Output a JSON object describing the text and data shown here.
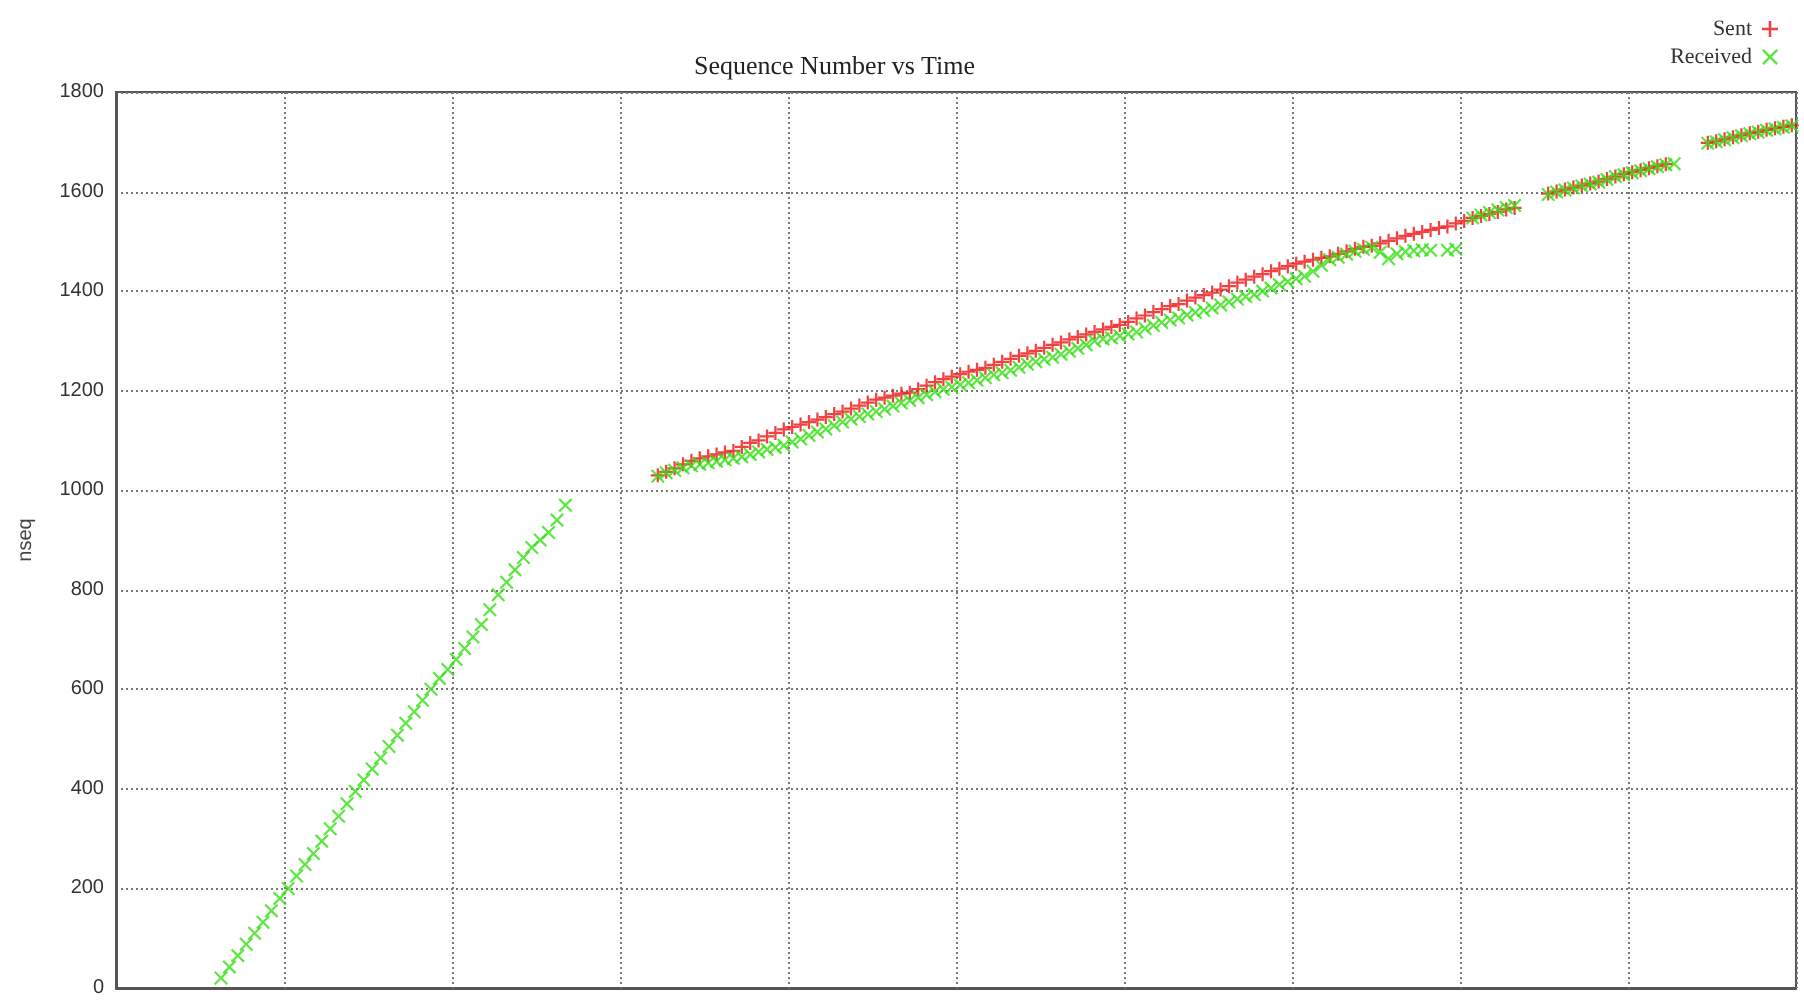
{
  "chart_data": {
    "type": "scatter",
    "title": "Sequence Number vs Time",
    "ylabel": "nseq",
    "categories": [
      null,
      null,
      null,
      null,
      null,
      null,
      null,
      null,
      null,
      null,
      null,
      null,
      null,
      null,
      null,
      null,
      null,
      null,
      null,
      null,
      null,
      null,
      null,
      null,
      null,
      null,
      null,
      null,
      null,
      null,
      null,
      null,
      null,
      null,
      null,
      null,
      null,
      null,
      null,
      null,
      null,
      null,
      null,
      null,
      null,
      null,
      null,
      null,
      null,
      null,
      null,
      null,
      null,
      null,
      null,
      null,
      null,
      null,
      null,
      null,
      null,
      null,
      null,
      null,
      null,
      null,
      null,
      null,
      null,
      null,
      null,
      null,
      null,
      null,
      null,
      null,
      null,
      null,
      null,
      null,
      null,
      null,
      null,
      null,
      null,
      null,
      null,
      null,
      null,
      null,
      null,
      null,
      null,
      null,
      null,
      null,
      null,
      null,
      null,
      null,
      null,
      null,
      null,
      null,
      null,
      null,
      null,
      null,
      null,
      null,
      null,
      null,
      null,
      null,
      null,
      null,
      null,
      null,
      null,
      null,
      null,
      null,
      null,
      null,
      null,
      null,
      null,
      null,
      null,
      null,
      null,
      null,
      null,
      null,
      null,
      null,
      null,
      null,
      null,
      null,
      null,
      null,
      null,
      null,
      null,
      null,
      null,
      null,
      null,
      null,
      null,
      null,
      null,
      null,
      null,
      null,
      null,
      null,
      null,
      null,
      null,
      null,
      null,
      null,
      null,
      null,
      null,
      null,
      null,
      null,
      null,
      null,
      null,
      null,
      null,
      null,
      null,
      null,
      null,
      null,
      null,
      null,
      null,
      null,
      null,
      null,
      null,
      null,
      null,
      null,
      null,
      null,
      null,
      null,
      null,
      null,
      null,
      null,
      null,
      null
    ],
    "series": [
      {
        "name": "Sent",
        "color": "#ee1111",
        "values": [
          null,
          null,
          null,
          null,
          null,
          null,
          null,
          null,
          null,
          null,
          null,
          null,
          null,
          null,
          null,
          null,
          null,
          null,
          null,
          null,
          null,
          null,
          null,
          null,
          null,
          null,
          null,
          null,
          null,
          null,
          null,
          null,
          null,
          null,
          null,
          null,
          null,
          null,
          null,
          null,
          null,
          null,
          null,
          null,
          null,
          null,
          null,
          null,
          null,
          null,
          null,
          null,
          null,
          null,
          null,
          null,
          null,
          null,
          null,
          null,
          null,
          null,
          null,
          null,
          1030,
          1037,
          1044,
          1052,
          1059,
          1064,
          1068,
          1072,
          1076,
          1079,
          1087,
          1095,
          1100,
          1108,
          1115,
          1122,
          1127,
          1132,
          1137,
          1142,
          1147,
          1153,
          1158,
          1164,
          1170,
          1176,
          1182,
          1186,
          1190,
          1194,
          1196,
          1203,
          1210,
          1217,
          1223,
          1228,
          1233,
          1238,
          1242,
          1246,
          1252,
          1258,
          1264,
          1270,
          1275,
          1280,
          1286,
          1292,
          1297,
          1303,
          1308,
          1313,
          1318,
          1323,
          1328,
          1332,
          1338,
          1345,
          1351,
          1358,
          1364,
          1370,
          1374,
          1381,
          1387,
          1392,
          1397,
          1403,
          1410,
          1417,
          1423,
          1429,
          1434,
          1440,
          1445,
          1450,
          1455,
          1459,
          1463,
          1467,
          1470,
          1475,
          1480,
          1485,
          1489,
          1491,
          1496,
          1501,
          1506,
          1511,
          1515,
          1519,
          1523,
          1527,
          1530,
          1536,
          1541,
          1547,
          1551,
          1555,
          1559,
          1564,
          1567,
          null,
          null,
          null,
          1596,
          1600,
          1604,
          1608,
          1612,
          1616,
          1620,
          1625,
          1630,
          1635,
          1639,
          1643,
          1647,
          1651,
          1655,
          null,
          null,
          null,
          null,
          1698,
          1701,
          1705,
          1709,
          1713,
          1717,
          1720,
          1724,
          1727,
          1730,
          1733
        ]
      },
      {
        "name": "Received",
        "color": "#33e010",
        "values": [
          null,
          null,
          null,
          null,
          null,
          null,
          null,
          null,
          null,
          null,
          null,
          null,
          20,
          42,
          65,
          88,
          110,
          132,
          155,
          180,
          200,
          225,
          248,
          270,
          295,
          320,
          345,
          370,
          395,
          418,
          440,
          462,
          485,
          508,
          532,
          555,
          578,
          600,
          622,
          640,
          660,
          682,
          705,
          730,
          760,
          790,
          815,
          840,
          865,
          885,
          900,
          915,
          940,
          970,
          null,
          null,
          null,
          null,
          null,
          null,
          null,
          null,
          null,
          null,
          1028,
          1035,
          1040,
          1045,
          1049,
          1052,
          1055,
          1058,
          1061,
          1064,
          1067,
          1072,
          1077,
          1082,
          1086,
          1090,
          1097,
          1103,
          1110,
          1117,
          1123,
          1130,
          1137,
          1143,
          1148,
          1153,
          1158,
          1163,
          1169,
          1175,
          1180,
          1186,
          1192,
          1198,
          1203,
          1207,
          1212,
          1216,
          1221,
          1226,
          1232,
          1236,
          1241,
          1247,
          1253,
          1258,
          1263,
          1267,
          1273,
          1279,
          1285,
          1292,
          1300,
          1304,
          1306,
          1310,
          1314,
          1318,
          1325,
          1331,
          1337,
          1342,
          1346,
          1352,
          1357,
          1361,
          1366,
          1372,
          1378,
          1384,
          1389,
          1393,
          1400,
          1406,
          1413,
          1419,
          1425,
          1430,
          1440,
          1452,
          1463,
          1468,
          1474,
          1480,
          1484,
          1488,
          1478,
          1465,
          1475,
          1479,
          1481,
          1483,
          1482,
          null,
          1482,
          1484,
          null,
          1547,
          1553,
          1558,
          1563,
          1568,
          1572,
          null,
          null,
          null,
          1594,
          1599,
          1603,
          1607,
          1611,
          1615,
          1619,
          1624,
          1630,
          1634,
          1638,
          1642,
          1646,
          1650,
          1654,
          1656,
          null,
          null,
          null,
          1697,
          1700,
          1704,
          1708,
          1712,
          1716,
          1719,
          1723,
          1726,
          1729,
          1732
        ]
      }
    ],
    "ylim": [
      0,
      1800
    ],
    "yticks": [
      0,
      200,
      400,
      600,
      800,
      1000,
      1200,
      1400,
      1600,
      1800
    ],
    "grid": true,
    "legend": "top right",
    "tick_labels": "y",
    "marker": "cross"
  }
}
